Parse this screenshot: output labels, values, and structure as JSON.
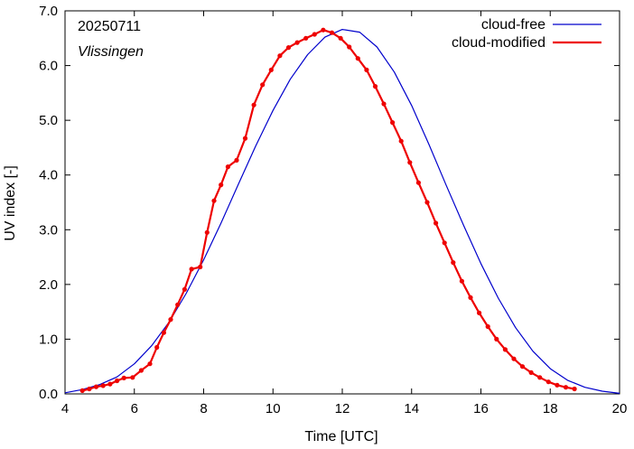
{
  "chart_data": {
    "type": "line",
    "xlabel": "Time  [UTC]",
    "ylabel": "UV index  [-]",
    "xlim": [
      4,
      20
    ],
    "ylim": [
      0,
      7
    ],
    "x_ticks": [
      4,
      6,
      8,
      10,
      12,
      14,
      16,
      18,
      20
    ],
    "y_ticks": [
      0,
      1,
      2,
      3,
      4,
      5,
      6,
      7
    ],
    "x_tick_labels": [
      "4",
      "6",
      "8",
      "10",
      "12",
      "14",
      "16",
      "18",
      "20"
    ],
    "y_tick_labels": [
      "0.0",
      "1.0",
      "2.0",
      "3.0",
      "4.0",
      "5.0",
      "6.0",
      "7.0"
    ],
    "annotations": [
      {
        "text": "20250711",
        "style": "normal"
      },
      {
        "text": "Vlissingen",
        "style": "italic"
      }
    ],
    "legend": {
      "placement": "top-right"
    },
    "grid": false,
    "series": [
      {
        "name": "cloud-free",
        "color": "#0000cc",
        "markers": false,
        "x": [
          4.0,
          4.5,
          5.0,
          5.5,
          6.0,
          6.5,
          7.0,
          7.5,
          8.0,
          8.5,
          9.0,
          9.5,
          10.0,
          10.5,
          11.0,
          11.5,
          12.0,
          12.5,
          13.0,
          13.5,
          14.0,
          14.5,
          15.0,
          15.5,
          16.0,
          16.5,
          17.0,
          17.5,
          18.0,
          18.5,
          19.0,
          19.5,
          20.0
        ],
        "y": [
          0.02,
          0.08,
          0.17,
          0.31,
          0.55,
          0.88,
          1.31,
          1.84,
          2.45,
          3.12,
          3.83,
          4.53,
          5.18,
          5.75,
          6.2,
          6.52,
          6.66,
          6.61,
          6.34,
          5.88,
          5.27,
          4.56,
          3.81,
          3.08,
          2.38,
          1.75,
          1.21,
          0.78,
          0.46,
          0.25,
          0.12,
          0.05,
          0.01
        ]
      },
      {
        "name": "cloud-modified",
        "color": "#ee0000",
        "markers": true,
        "x": [
          4.5,
          4.7,
          4.9,
          5.1,
          5.3,
          5.5,
          5.7,
          5.95,
          6.2,
          6.45,
          6.65,
          6.85,
          7.05,
          7.25,
          7.45,
          7.65,
          7.9,
          8.1,
          8.3,
          8.5,
          8.7,
          8.95,
          9.2,
          9.45,
          9.7,
          9.95,
          10.2,
          10.45,
          10.7,
          10.95,
          11.2,
          11.45,
          11.7,
          11.95,
          12.2,
          12.45,
          12.7,
          12.95,
          13.2,
          13.45,
          13.7,
          13.95,
          14.2,
          14.45,
          14.7,
          14.95,
          15.2,
          15.45,
          15.7,
          15.95,
          16.2,
          16.45,
          16.7,
          16.95,
          17.2,
          17.45,
          17.7,
          17.95,
          18.2,
          18.45,
          18.7
        ],
        "y": [
          0.06,
          0.09,
          0.13,
          0.15,
          0.18,
          0.24,
          0.29,
          0.3,
          0.43,
          0.55,
          0.85,
          1.12,
          1.36,
          1.63,
          1.91,
          2.28,
          2.32,
          2.95,
          3.53,
          3.82,
          4.15,
          4.27,
          4.67,
          5.28,
          5.65,
          5.92,
          6.18,
          6.33,
          6.42,
          6.5,
          6.57,
          6.65,
          6.6,
          6.5,
          6.34,
          6.13,
          5.92,
          5.62,
          5.3,
          4.96,
          4.62,
          4.23,
          3.86,
          3.5,
          3.12,
          2.76,
          2.4,
          2.06,
          1.76,
          1.48,
          1.23,
          1.0,
          0.81,
          0.64,
          0.5,
          0.39,
          0.3,
          0.22,
          0.16,
          0.12,
          0.09
        ]
      }
    ]
  }
}
